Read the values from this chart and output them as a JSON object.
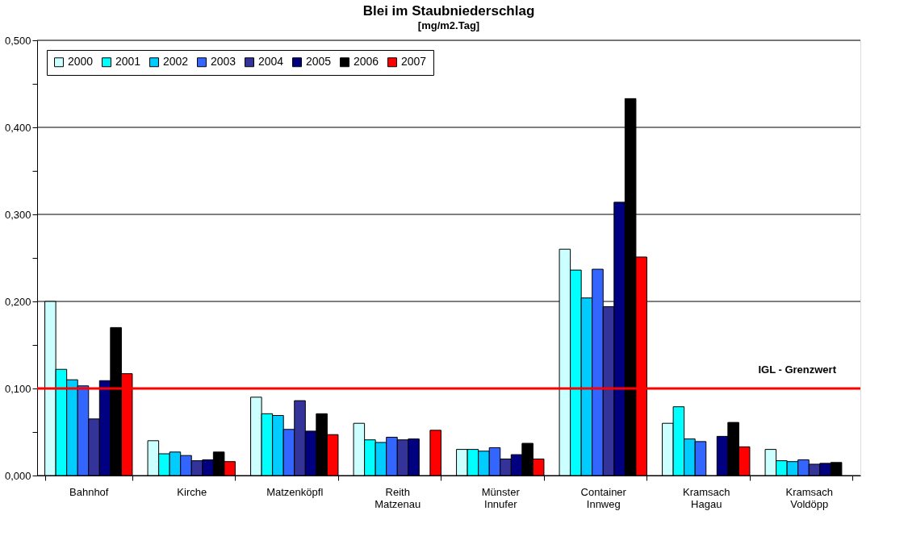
{
  "chart_data": {
    "type": "bar",
    "title": "Blei im Staubniederschlag",
    "ylabel": "[mg/m2.Tag]",
    "categories": [
      "Bahnhof",
      "Kirche",
      "Matzenköpfl",
      "Reith\nMatzenau",
      "Münster\nInnufer",
      "Container\nInnweg",
      "Kramsach\nHagau",
      "Kramsach\nVoldöpp"
    ],
    "series": [
      {
        "name": "2000",
        "color": "#ccffff",
        "values": [
          0.2,
          0.04,
          0.09,
          0.06,
          0.03,
          0.26,
          0.06,
          0.03
        ]
      },
      {
        "name": "2001",
        "color": "#00ffff",
        "values": [
          0.122,
          0.025,
          0.071,
          0.041,
          0.03,
          0.236,
          0.079,
          0.017
        ]
      },
      {
        "name": "2002",
        "color": "#00ccff",
        "values": [
          0.11,
          0.027,
          0.069,
          0.038,
          0.028,
          0.204,
          0.042,
          0.016
        ]
      },
      {
        "name": "2003",
        "color": "#3366ff",
        "values": [
          0.103,
          0.023,
          0.053,
          0.044,
          0.032,
          0.237,
          0.039,
          0.018
        ]
      },
      {
        "name": "2004",
        "color": "#333399",
        "values": [
          0.065,
          0.017,
          0.086,
          0.041,
          0.019,
          0.194,
          null,
          0.013
        ]
      },
      {
        "name": "2005",
        "color": "#000080",
        "values": [
          0.109,
          0.018,
          0.051,
          0.042,
          0.024,
          0.314,
          0.045,
          0.014
        ]
      },
      {
        "name": "2006",
        "color": "#000000",
        "values": [
          0.17,
          0.027,
          0.071,
          null,
          0.037,
          0.433,
          0.061,
          0.015
        ]
      },
      {
        "name": "2007",
        "color": "#ff0000",
        "values": [
          0.117,
          0.016,
          0.047,
          0.052,
          0.019,
          0.251,
          0.033,
          null
        ]
      }
    ],
    "ylim": [
      0,
      0.5
    ],
    "yticks": [
      {
        "value": 0,
        "label": "0,000"
      },
      {
        "value": 0.05,
        "label": null
      },
      {
        "value": 0.1,
        "label": "0,100"
      },
      {
        "value": 0.15,
        "label": null
      },
      {
        "value": 0.2,
        "label": "0,200"
      },
      {
        "value": 0.25,
        "label": null
      },
      {
        "value": 0.3,
        "label": "0,300"
      },
      {
        "value": 0.35,
        "label": null
      },
      {
        "value": 0.4,
        "label": "0,400"
      },
      {
        "value": 0.45,
        "label": null
      },
      {
        "value": 0.5,
        "label": "0,500"
      }
    ],
    "grid": "y",
    "legend": "top left",
    "ref_lines": [
      {
        "axis": "y",
        "value": 0.1,
        "label": "IGL - Grenzwert",
        "color": "#ff0000"
      }
    ]
  }
}
